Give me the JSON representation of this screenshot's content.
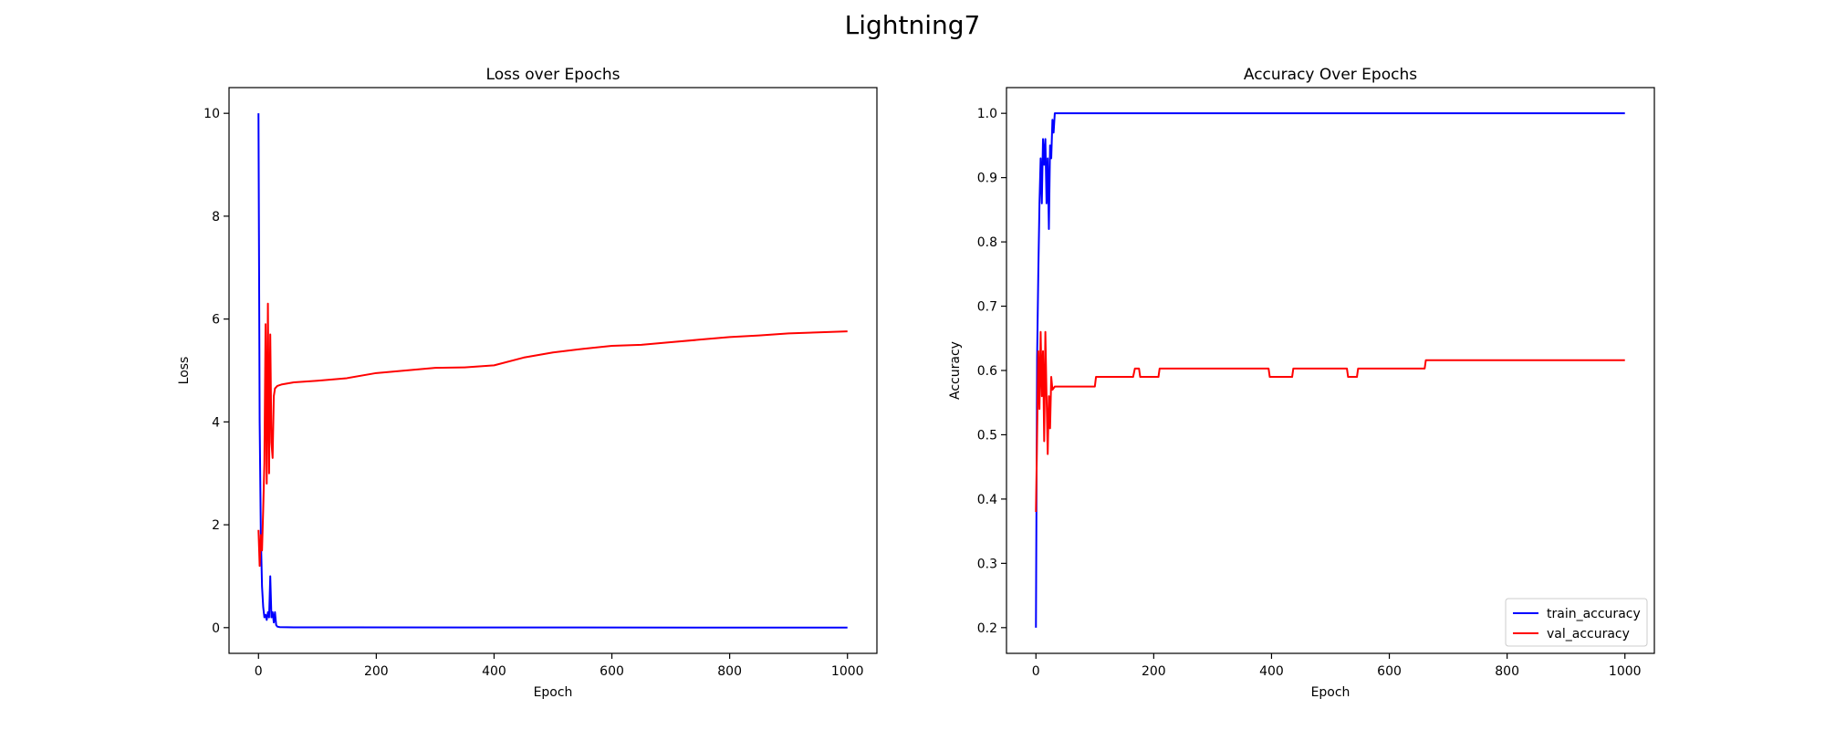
{
  "figure": {
    "title": "Lightning7"
  },
  "colors": {
    "train": "#0000ff",
    "val": "#ff0000",
    "axes": "#000000",
    "background": "#ffffff"
  },
  "chart_data": [
    {
      "type": "line",
      "title": "Loss over Epochs",
      "xlabel": "Epoch",
      "ylabel": "Loss",
      "xlim": [
        -50,
        1050
      ],
      "ylim": [
        -0.5,
        10.5
      ],
      "xticks": [
        0,
        200,
        400,
        600,
        800,
        1000
      ],
      "yticks": [
        0,
        2,
        4,
        6,
        8,
        10
      ],
      "legend": null,
      "series": [
        {
          "color": "#0000ff",
          "points": [
            [
              0,
              10
            ],
            [
              2,
              4
            ],
            [
              4,
              1.8
            ],
            [
              6,
              0.8
            ],
            [
              8,
              0.4
            ],
            [
              10,
              0.2
            ],
            [
              12,
              0.25
            ],
            [
              14,
              0.15
            ],
            [
              16,
              0.3
            ],
            [
              18,
              0.2
            ],
            [
              20,
              1.0
            ],
            [
              22,
              0.2
            ],
            [
              24,
              0.3
            ],
            [
              26,
              0.1
            ],
            [
              28,
              0.3
            ],
            [
              30,
              0.05
            ],
            [
              32,
              0.02
            ],
            [
              36,
              0.01
            ],
            [
              60,
              0.005
            ],
            [
              1000,
              0.001
            ]
          ]
        },
        {
          "color": "#ff0000",
          "points": [
            [
              0,
              1.9
            ],
            [
              2,
              1.2
            ],
            [
              4,
              1.8
            ],
            [
              6,
              1.5
            ],
            [
              8,
              2.3
            ],
            [
              10,
              3.2
            ],
            [
              12,
              5.9
            ],
            [
              14,
              2.8
            ],
            [
              16,
              6.3
            ],
            [
              18,
              3.0
            ],
            [
              20,
              5.7
            ],
            [
              22,
              3.6
            ],
            [
              24,
              3.3
            ],
            [
              26,
              4.5
            ],
            [
              28,
              4.65
            ],
            [
              32,
              4.7
            ],
            [
              40,
              4.73
            ],
            [
              60,
              4.77
            ],
            [
              100,
              4.8
            ],
            [
              150,
              4.85
            ],
            [
              200,
              4.95
            ],
            [
              250,
              5.0
            ],
            [
              300,
              5.05
            ],
            [
              350,
              5.06
            ],
            [
              400,
              5.1
            ],
            [
              450,
              5.25
            ],
            [
              500,
              5.35
            ],
            [
              550,
              5.42
            ],
            [
              600,
              5.48
            ],
            [
              650,
              5.5
            ],
            [
              700,
              5.55
            ],
            [
              750,
              5.6
            ],
            [
              800,
              5.65
            ],
            [
              850,
              5.68
            ],
            [
              900,
              5.72
            ],
            [
              950,
              5.74
            ],
            [
              1000,
              5.76
            ]
          ]
        }
      ]
    },
    {
      "type": "line",
      "title": "Accuracy Over Epochs",
      "xlabel": "Epoch",
      "ylabel": "Accuracy",
      "xlim": [
        -50,
        1050
      ],
      "ylim": [
        0.16,
        1.04
      ],
      "xticks": [
        0,
        200,
        400,
        600,
        800,
        1000
      ],
      "yticks": [
        0.2,
        0.3,
        0.4,
        0.5,
        0.6,
        0.7,
        0.8,
        0.9,
        1.0
      ],
      "legend": "lower right",
      "series": [
        {
          "name": "train_accuracy",
          "color": "#0000ff",
          "points": [
            [
              0,
              0.2
            ],
            [
              2,
              0.62
            ],
            [
              4,
              0.75
            ],
            [
              6,
              0.86
            ],
            [
              8,
              0.93
            ],
            [
              10,
              0.86
            ],
            [
              12,
              0.96
            ],
            [
              14,
              0.92
            ],
            [
              16,
              0.96
            ],
            [
              18,
              0.86
            ],
            [
              20,
              0.93
            ],
            [
              22,
              0.82
            ],
            [
              24,
              0.95
            ],
            [
              26,
              0.93
            ],
            [
              28,
              0.99
            ],
            [
              30,
              0.97
            ],
            [
              32,
              1.0
            ],
            [
              1000,
              1.0
            ]
          ]
        },
        {
          "name": "val_accuracy",
          "color": "#ff0000",
          "points": [
            [
              0,
              0.38
            ],
            [
              2,
              0.5
            ],
            [
              4,
              0.63
            ],
            [
              6,
              0.54
            ],
            [
              8,
              0.66
            ],
            [
              10,
              0.56
            ],
            [
              12,
              0.63
            ],
            [
              14,
              0.49
            ],
            [
              16,
              0.66
            ],
            [
              18,
              0.56
            ],
            [
              20,
              0.47
            ],
            [
              22,
              0.56
            ],
            [
              24,
              0.51
            ],
            [
              26,
              0.59
            ],
            [
              28,
              0.57
            ],
            [
              32,
              0.575
            ],
            [
              100,
              0.575
            ],
            [
              102,
              0.59
            ],
            [
              165,
              0.59
            ],
            [
              168,
              0.603
            ],
            [
              175,
              0.603
            ],
            [
              177,
              0.59
            ],
            [
              208,
              0.59
            ],
            [
              210,
              0.603
            ],
            [
              395,
              0.603
            ],
            [
              397,
              0.59
            ],
            [
              435,
              0.59
            ],
            [
              437,
              0.603
            ],
            [
              528,
              0.603
            ],
            [
              530,
              0.59
            ],
            [
              545,
              0.59
            ],
            [
              547,
              0.603
            ],
            [
              660,
              0.603
            ],
            [
              662,
              0.616
            ],
            [
              1000,
              0.616
            ]
          ]
        }
      ]
    }
  ]
}
